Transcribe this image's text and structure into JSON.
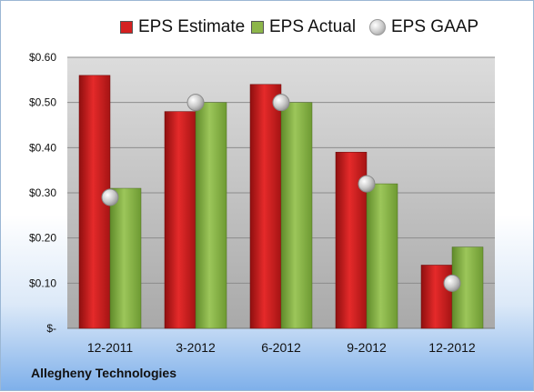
{
  "chart_data": {
    "type": "bar",
    "categories": [
      "12-2011",
      "3-2012",
      "6-2012",
      "9-2012",
      "12-2012"
    ],
    "series": [
      {
        "name": "EPS Estimate",
        "values": [
          0.56,
          0.48,
          0.54,
          0.39,
          0.14
        ],
        "color": "#d42020"
      },
      {
        "name": "EPS Actual",
        "values": [
          0.31,
          0.5,
          0.5,
          0.32,
          0.18
        ],
        "color": "#8db64a"
      },
      {
        "name": "EPS GAAP",
        "values": [
          0.29,
          0.5,
          0.5,
          0.32,
          0.1
        ],
        "color": "#c0c0c0",
        "style": "marker"
      }
    ],
    "y_ticks": [
      "$-",
      "$0.10",
      "$0.20",
      "$0.30",
      "$0.40",
      "$0.50",
      "$0.60"
    ],
    "ylim": [
      0,
      0.6
    ],
    "grid": true,
    "legend_position": "top"
  },
  "footer": {
    "company": "Allegheny Technologies"
  }
}
